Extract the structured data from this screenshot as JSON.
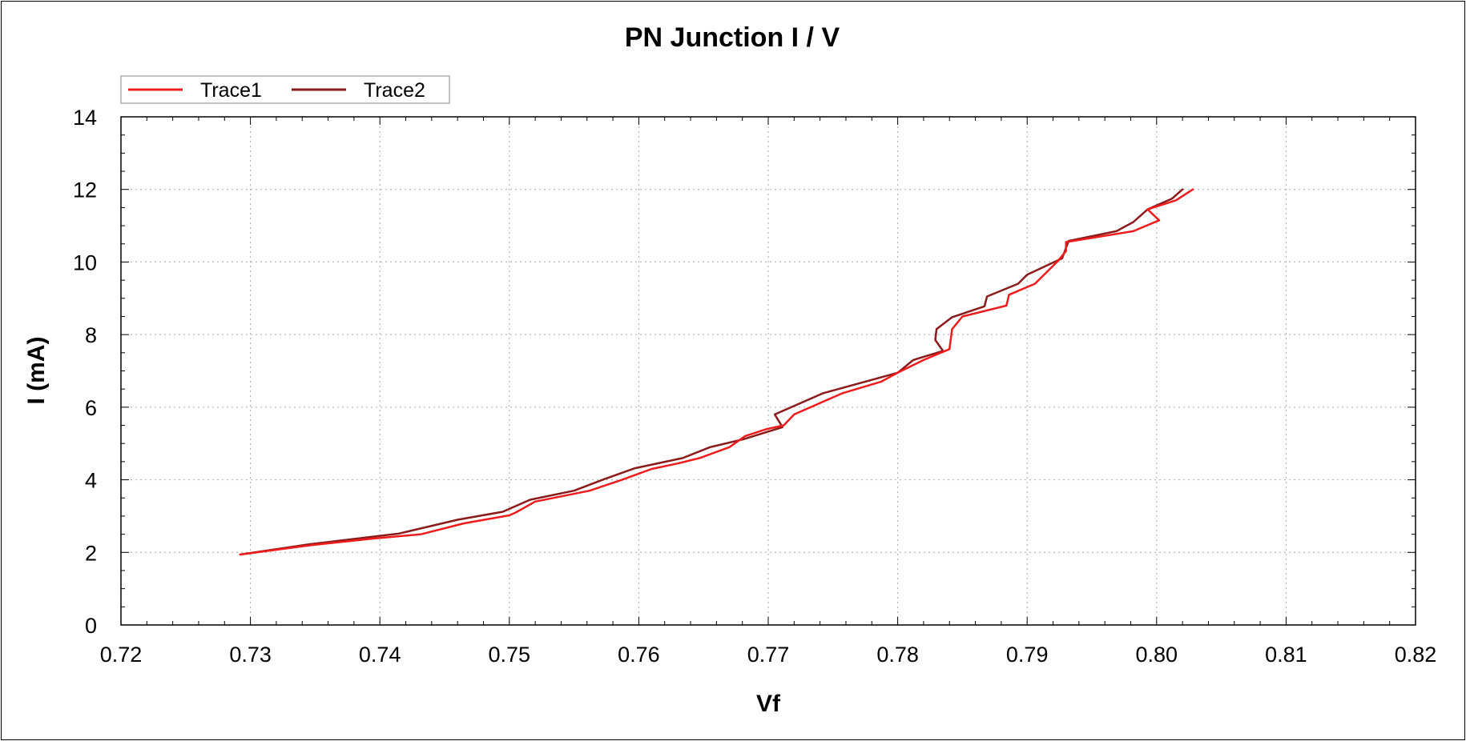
{
  "chart_data": {
    "type": "line",
    "title": "PN Junction I / V",
    "xlabel": "Vf",
    "ylabel": "I (mA)",
    "xlim": [
      0.72,
      0.82
    ],
    "ylim": [
      0,
      14
    ],
    "x_ticks": [
      "0.72",
      "0.73",
      "0.74",
      "0.75",
      "0.76",
      "0.77",
      "0.78",
      "0.79",
      "0.80",
      "0.81",
      "0.82"
    ],
    "y_ticks": [
      "0",
      "2",
      "4",
      "6",
      "8",
      "10",
      "12",
      "14"
    ],
    "grid": true,
    "legend_position": "top-left",
    "series": [
      {
        "name": "Trace1",
        "color": "#ee1c1c",
        "points": [
          [
            0.7292,
            1.94
          ],
          [
            0.7347,
            2.2
          ],
          [
            0.7395,
            2.38
          ],
          [
            0.7432,
            2.5
          ],
          [
            0.7465,
            2.8
          ],
          [
            0.75,
            3.02
          ],
          [
            0.7505,
            3.1
          ],
          [
            0.752,
            3.4
          ],
          [
            0.7562,
            3.7
          ],
          [
            0.7587,
            4.0
          ],
          [
            0.761,
            4.3
          ],
          [
            0.763,
            4.45
          ],
          [
            0.7647,
            4.6
          ],
          [
            0.767,
            4.9
          ],
          [
            0.7682,
            5.2
          ],
          [
            0.7699,
            5.4
          ],
          [
            0.7712,
            5.5
          ],
          [
            0.772,
            5.8
          ],
          [
            0.7757,
            6.38
          ],
          [
            0.7787,
            6.7
          ],
          [
            0.78,
            6.95
          ],
          [
            0.782,
            7.3
          ],
          [
            0.784,
            7.6
          ],
          [
            0.7842,
            8.15
          ],
          [
            0.785,
            8.5
          ],
          [
            0.7884,
            8.8
          ],
          [
            0.7886,
            9.1
          ],
          [
            0.7906,
            9.4
          ],
          [
            0.7923,
            10.0
          ],
          [
            0.793,
            10.3
          ],
          [
            0.793,
            10.55
          ],
          [
            0.7982,
            10.85
          ],
          [
            0.8002,
            11.15
          ],
          [
            0.7993,
            11.45
          ],
          [
            0.8015,
            11.7
          ],
          [
            0.8028,
            12.0
          ]
        ]
      },
      {
        "name": "Trace2",
        "color": "#8b1a1a",
        "points": [
          [
            0.7292,
            1.94
          ],
          [
            0.7345,
            2.22
          ],
          [
            0.7415,
            2.52
          ],
          [
            0.746,
            2.9
          ],
          [
            0.7495,
            3.12
          ],
          [
            0.7516,
            3.45
          ],
          [
            0.755,
            3.7
          ],
          [
            0.7572,
            4.0
          ],
          [
            0.7597,
            4.32
          ],
          [
            0.7634,
            4.6
          ],
          [
            0.7655,
            4.9
          ],
          [
            0.7681,
            5.12
          ],
          [
            0.7711,
            5.45
          ],
          [
            0.7705,
            5.8
          ],
          [
            0.7742,
            6.38
          ],
          [
            0.78,
            6.95
          ],
          [
            0.7812,
            7.3
          ],
          [
            0.7835,
            7.55
          ],
          [
            0.7829,
            7.85
          ],
          [
            0.783,
            8.15
          ],
          [
            0.7842,
            8.48
          ],
          [
            0.7867,
            8.78
          ],
          [
            0.7869,
            9.05
          ],
          [
            0.7893,
            9.4
          ],
          [
            0.79,
            9.65
          ],
          [
            0.7927,
            10.1
          ],
          [
            0.7932,
            10.58
          ],
          [
            0.7969,
            10.85
          ],
          [
            0.7982,
            11.1
          ],
          [
            0.7993,
            11.45
          ],
          [
            0.8012,
            11.75
          ],
          [
            0.802,
            12.0
          ]
        ]
      }
    ]
  }
}
